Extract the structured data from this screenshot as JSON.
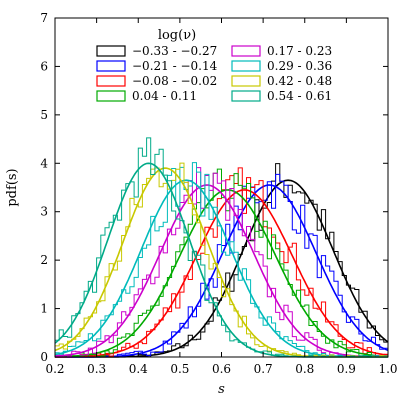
{
  "chart_data": {
    "type": "line",
    "xlabel": "s",
    "ylabel": "pdf(s)",
    "xlim": [
      0.2,
      1.0
    ],
    "ylim": [
      0,
      7
    ],
    "xticks": [
      "0.2",
      "0.3",
      "0.4",
      "0.5",
      "0.6",
      "0.7",
      "0.8",
      "0.9",
      "1.0"
    ],
    "yticks": [
      "0",
      "1",
      "2",
      "3",
      "4",
      "5",
      "6",
      "7"
    ],
    "grid": false,
    "legend": {
      "title": "log(ν)",
      "placement": "top-center",
      "columns": 2
    },
    "series": [
      {
        "name": "−0.33 - −0.27",
        "color": "#000000",
        "mean": 0.76,
        "sd": 0.108,
        "peak": 3.65
      },
      {
        "name": "−0.21 - −0.14",
        "color": "#0000ff",
        "mean": 0.715,
        "sd": 0.112,
        "peak": 3.55
      },
      {
        "name": "−0.08 - −0.02",
        "color": "#ff0000",
        "mean": 0.655,
        "sd": 0.115,
        "peak": 3.45
      },
      {
        "name": "0.04 - 0.11",
        "color": "#00aa00",
        "mean": 0.615,
        "sd": 0.115,
        "peak": 3.45
      },
      {
        "name": "0.17 - 0.23",
        "color": "#cc00cc",
        "mean": 0.565,
        "sd": 0.112,
        "peak": 3.55
      },
      {
        "name": "0.29 - 0.36",
        "color": "#00bbbb",
        "mean": 0.515,
        "sd": 0.108,
        "peak": 3.65
      },
      {
        "name": "0.42 - 0.48",
        "color": "#c8c800",
        "mean": 0.465,
        "sd": 0.102,
        "peak": 3.9
      },
      {
        "name": "0.54 - 0.61",
        "color": "#00aa88",
        "mean": 0.425,
        "sd": 0.098,
        "peak": 4.0
      }
    ]
  }
}
